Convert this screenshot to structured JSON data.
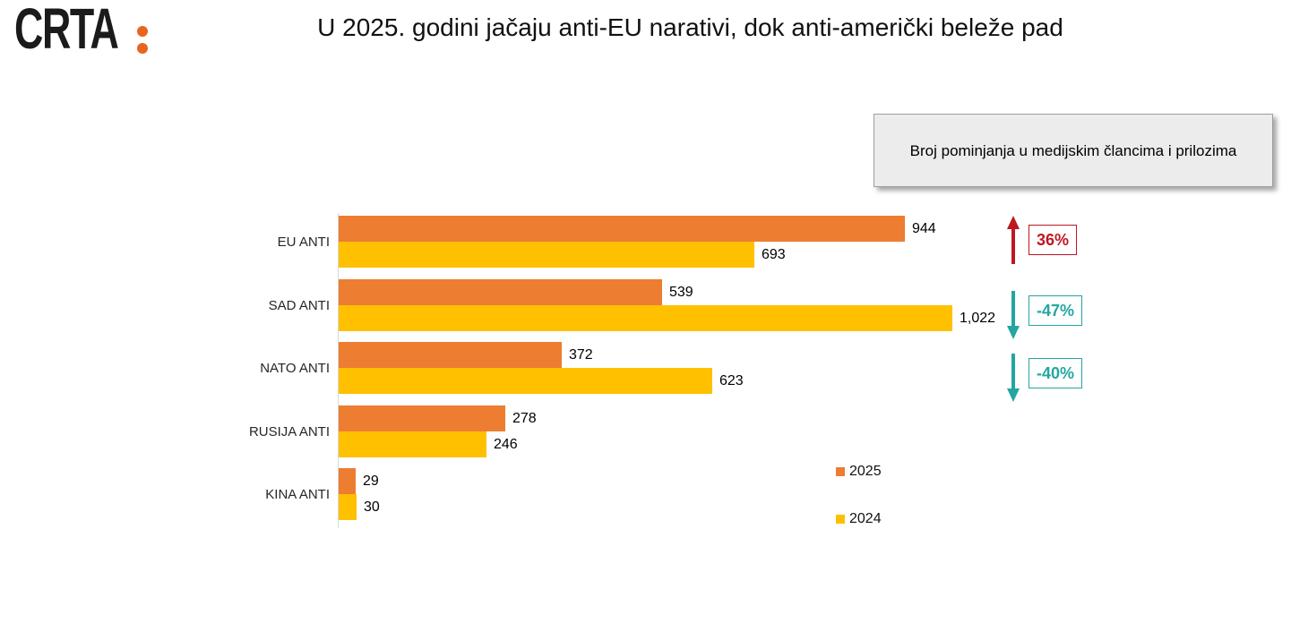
{
  "logo": {
    "text": "CRTA",
    "colon_color": "#e8651f"
  },
  "title": "U 2025. godini jačaju anti-EU narativi, dok anti-američki beleže pad",
  "annotation_box": {
    "text": "Broj pominjanja u medijskim člancima i prilozima"
  },
  "legend": [
    {
      "label": "2025",
      "color": "#ED7D31"
    },
    {
      "label": "2024",
      "color": "#FFC000"
    }
  ],
  "chart_data": {
    "type": "bar",
    "orientation": "horizontal",
    "title": "U 2025. godini jačaju anti-EU narativi, dok anti-američki beleže pad",
    "xlabel": "",
    "ylabel": "",
    "categories": [
      "EU ANTI",
      "SAD ANTI",
      "NATO ANTI",
      "RUSIJA ANTI",
      "KINA ANTI"
    ],
    "series": [
      {
        "name": "2025",
        "color": "#ED7D31",
        "values": [
          944,
          539,
          372,
          278,
          29
        ],
        "labels": [
          "944",
          "539",
          "372",
          "278",
          "29"
        ]
      },
      {
        "name": "2024",
        "color": "#FFC000",
        "values": [
          693,
          1022,
          623,
          246,
          30
        ],
        "labels": [
          "693",
          "1,022",
          "623",
          "246",
          "30"
        ]
      }
    ],
    "xlim": [
      0,
      1100
    ],
    "grid": false,
    "legend_position": "right-bottom",
    "changes": [
      {
        "category": "EU ANTI",
        "label": "36%",
        "direction": "up",
        "color": "#bf1722"
      },
      {
        "category": "SAD ANTI",
        "label": "-47%",
        "direction": "down",
        "color": "#23a6a2"
      },
      {
        "category": "NATO ANTI",
        "label": "-40%",
        "direction": "down",
        "color": "#23a6a2"
      }
    ]
  }
}
